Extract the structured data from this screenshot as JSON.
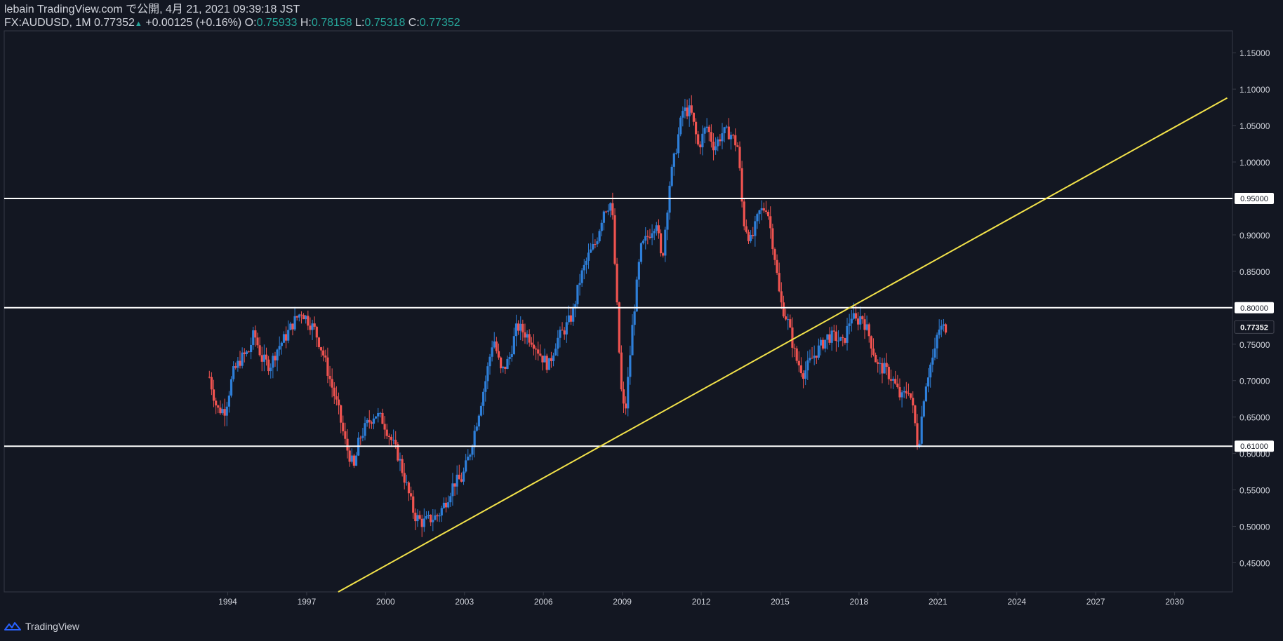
{
  "header": {
    "line1": "lebain TradingView.com で公開, 4月 21, 2021 09:39:18 JST",
    "symbol": "FX:AUDUSD, 1M",
    "last": "0.77352",
    "change": "+0.00125 (+0.16%)",
    "o_label": "O:",
    "o_val": "0.75933",
    "h_label": "H:",
    "h_val": "0.78158",
    "l_label": "L:",
    "l_val": "0.75318",
    "c_label": "C:",
    "c_val": "0.77352",
    "up_glyph": "▲"
  },
  "footer": {
    "brand": "TradingView",
    "logo_icon": "tradingview-logo-icon"
  },
  "colors": {
    "bg": "#131722",
    "up": "#2e7fd9",
    "down": "#ef5350",
    "trend": "#f3e34a",
    "hline": "#ffffff",
    "axis": "#d1d4dc"
  },
  "chart_data": {
    "type": "candlestick",
    "title": "FX:AUDUSD, 1M",
    "x_axis": {
      "ticks": [
        "1994",
        "1997",
        "2000",
        "2003",
        "2006",
        "2009",
        "2012",
        "2015",
        "2018",
        "2021",
        "2024",
        "2027",
        "2030"
      ],
      "range": [
        1985.5,
        2032.2
      ]
    },
    "y_axis": {
      "ticks": [
        "0.45000",
        "0.50000",
        "0.55000",
        "0.60000",
        "0.65000",
        "0.70000",
        "0.75000",
        "0.80000",
        "0.85000",
        "0.90000",
        "0.95000",
        "1.00000",
        "1.05000",
        "1.10000",
        "1.15000"
      ],
      "range": [
        0.41,
        1.18
      ]
    },
    "last_price_label": "0.77352",
    "horizontal_lines": [
      {
        "price": 0.95,
        "label": "0.95000"
      },
      {
        "price": 0.8,
        "label": "0.80000"
      },
      {
        "price": 0.61,
        "label": "0.61000"
      }
    ],
    "trend_line": {
      "from": {
        "year": 1998.2,
        "price": 0.41
      },
      "to": {
        "year": 2032.0,
        "price": 1.088
      }
    },
    "close_path": [
      [
        1993.3,
        0.705
      ],
      [
        1993.6,
        0.66
      ],
      [
        1993.9,
        0.66
      ],
      [
        1994.2,
        0.71
      ],
      [
        1994.5,
        0.73
      ],
      [
        1994.8,
        0.74
      ],
      [
        1995.0,
        0.765
      ],
      [
        1995.3,
        0.73
      ],
      [
        1995.6,
        0.72
      ],
      [
        1995.9,
        0.745
      ],
      [
        1996.2,
        0.76
      ],
      [
        1996.5,
        0.78
      ],
      [
        1996.8,
        0.795
      ],
      [
        1997.0,
        0.785
      ],
      [
        1997.3,
        0.77
      ],
      [
        1997.6,
        0.74
      ],
      [
        1997.9,
        0.7
      ],
      [
        1998.2,
        0.66
      ],
      [
        1998.5,
        0.61
      ],
      [
        1998.8,
        0.58
      ],
      [
        1999.0,
        0.62
      ],
      [
        1999.3,
        0.64
      ],
      [
        1999.6,
        0.655
      ],
      [
        1999.9,
        0.645
      ],
      [
        2000.2,
        0.62
      ],
      [
        2000.5,
        0.595
      ],
      [
        2000.8,
        0.555
      ],
      [
        2001.1,
        0.515
      ],
      [
        2001.4,
        0.505
      ],
      [
        2001.7,
        0.51
      ],
      [
        2002.0,
        0.515
      ],
      [
        2002.3,
        0.535
      ],
      [
        2002.6,
        0.56
      ],
      [
        2002.9,
        0.565
      ],
      [
        2003.2,
        0.6
      ],
      [
        2003.5,
        0.65
      ],
      [
        2003.8,
        0.7
      ],
      [
        2004.1,
        0.76
      ],
      [
        2004.4,
        0.71
      ],
      [
        2004.7,
        0.73
      ],
      [
        2005.0,
        0.775
      ],
      [
        2005.3,
        0.765
      ],
      [
        2005.6,
        0.755
      ],
      [
        2005.9,
        0.735
      ],
      [
        2006.2,
        0.72
      ],
      [
        2006.5,
        0.755
      ],
      [
        2006.8,
        0.77
      ],
      [
        2007.1,
        0.79
      ],
      [
        2007.4,
        0.84
      ],
      [
        2007.7,
        0.87
      ],
      [
        2008.0,
        0.89
      ],
      [
        2008.3,
        0.935
      ],
      [
        2008.6,
        0.945
      ],
      [
        2008.8,
        0.8
      ],
      [
        2008.95,
        0.69
      ],
      [
        2009.1,
        0.65
      ],
      [
        2009.4,
        0.78
      ],
      [
        2009.7,
        0.88
      ],
      [
        2010.0,
        0.9
      ],
      [
        2010.3,
        0.92
      ],
      [
        2010.5,
        0.86
      ],
      [
        2010.8,
        0.97
      ],
      [
        2011.0,
        1.01
      ],
      [
        2011.3,
        1.07
      ],
      [
        2011.6,
        1.07
      ],
      [
        2011.9,
        1.02
      ],
      [
        2012.2,
        1.05
      ],
      [
        2012.5,
        1.02
      ],
      [
        2012.8,
        1.04
      ],
      [
        2013.1,
        1.04
      ],
      [
        2013.4,
        1.02
      ],
      [
        2013.6,
        0.92
      ],
      [
        2013.9,
        0.89
      ],
      [
        2014.2,
        0.93
      ],
      [
        2014.5,
        0.94
      ],
      [
        2014.8,
        0.87
      ],
      [
        2015.0,
        0.81
      ],
      [
        2015.3,
        0.78
      ],
      [
        2015.6,
        0.73
      ],
      [
        2015.9,
        0.71
      ],
      [
        2016.2,
        0.73
      ],
      [
        2016.5,
        0.745
      ],
      [
        2016.8,
        0.76
      ],
      [
        2017.1,
        0.76
      ],
      [
        2017.4,
        0.75
      ],
      [
        2017.7,
        0.79
      ],
      [
        2017.9,
        0.78
      ],
      [
        2018.1,
        0.79
      ],
      [
        2018.4,
        0.76
      ],
      [
        2018.7,
        0.72
      ],
      [
        2019.0,
        0.715
      ],
      [
        2019.3,
        0.7
      ],
      [
        2019.6,
        0.675
      ],
      [
        2019.9,
        0.69
      ],
      [
        2020.1,
        0.65
      ],
      [
        2020.25,
        0.605
      ],
      [
        2020.5,
        0.69
      ],
      [
        2020.7,
        0.72
      ],
      [
        2020.9,
        0.74
      ],
      [
        2021.0,
        0.77
      ],
      [
        2021.3,
        0.77352
      ]
    ]
  }
}
